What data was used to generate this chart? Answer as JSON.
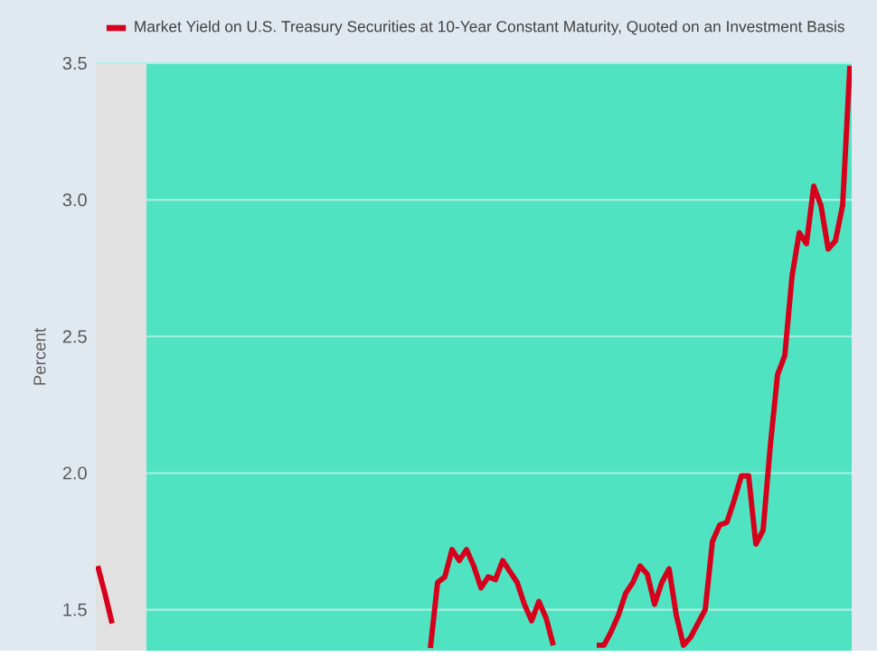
{
  "chart_data": {
    "type": "line",
    "ylabel": "Percent",
    "categories": [
      null,
      null,
      null,
      null,
      null,
      null,
      null,
      null,
      null,
      null,
      null,
      null,
      null,
      null,
      null,
      null,
      null,
      null,
      null,
      null,
      null,
      null,
      null,
      null,
      null,
      null,
      null,
      null,
      null,
      null,
      null,
      null,
      null,
      null,
      null,
      null,
      null,
      null,
      null,
      null,
      null,
      null,
      null,
      null,
      null,
      null,
      null,
      null,
      null,
      null,
      null,
      null,
      null,
      null,
      null,
      null,
      null,
      null,
      null,
      null,
      null,
      null,
      null,
      null,
      null,
      null,
      null,
      null,
      null,
      null,
      null,
      null,
      null,
      null,
      null,
      null,
      null,
      null,
      null,
      null,
      null,
      null,
      null,
      null,
      null,
      null,
      null,
      null,
      null,
      null,
      null,
      null,
      null,
      null,
      null,
      null,
      null,
      null,
      null,
      null,
      null,
      null,
      null,
      null,
      null
    ],
    "series": [
      {
        "name": "Market Yield on U.S. Treasury Securities at 10-Year Constant Maturity, Quoted on an Investment Basis",
        "color": "#d6001c",
        "values": [
          1.66,
          1.56,
          1.45,
          null,
          null,
          null,
          null,
          null,
          null,
          null,
          null,
          null,
          null,
          null,
          null,
          null,
          null,
          null,
          null,
          null,
          null,
          null,
          null,
          null,
          null,
          null,
          null,
          null,
          null,
          null,
          null,
          null,
          null,
          null,
          null,
          null,
          null,
          null,
          null,
          null,
          null,
          null,
          null,
          null,
          null,
          null,
          1.36,
          1.6,
          1.62,
          1.72,
          1.68,
          1.72,
          1.66,
          1.58,
          1.62,
          1.61,
          1.68,
          1.64,
          1.6,
          1.52,
          1.46,
          1.53,
          1.47,
          1.37,
          null,
          null,
          null,
          null,
          null,
          1.37,
          1.37,
          1.42,
          1.48,
          1.56,
          1.6,
          1.66,
          1.63,
          1.52,
          1.6,
          1.65,
          1.48,
          1.37,
          1.4,
          1.45,
          1.5,
          1.75,
          1.81,
          1.82,
          1.9,
          1.99,
          1.99,
          1.74,
          1.79,
          2.1,
          2.36,
          2.43,
          2.72,
          2.88,
          2.84,
          3.05,
          2.98,
          2.82,
          2.85,
          2.98,
          3.49
        ]
      }
    ],
    "ylim": [
      1.35,
      3.5
    ],
    "yticks": [
      1.5,
      {
        "value": 2,
        "label": "2.0"
      },
      2.5,
      {
        "value": 3,
        "label": "3.0"
      },
      3.5
    ],
    "tick_labels": "y",
    "grid": "y",
    "legend": "top left"
  }
}
